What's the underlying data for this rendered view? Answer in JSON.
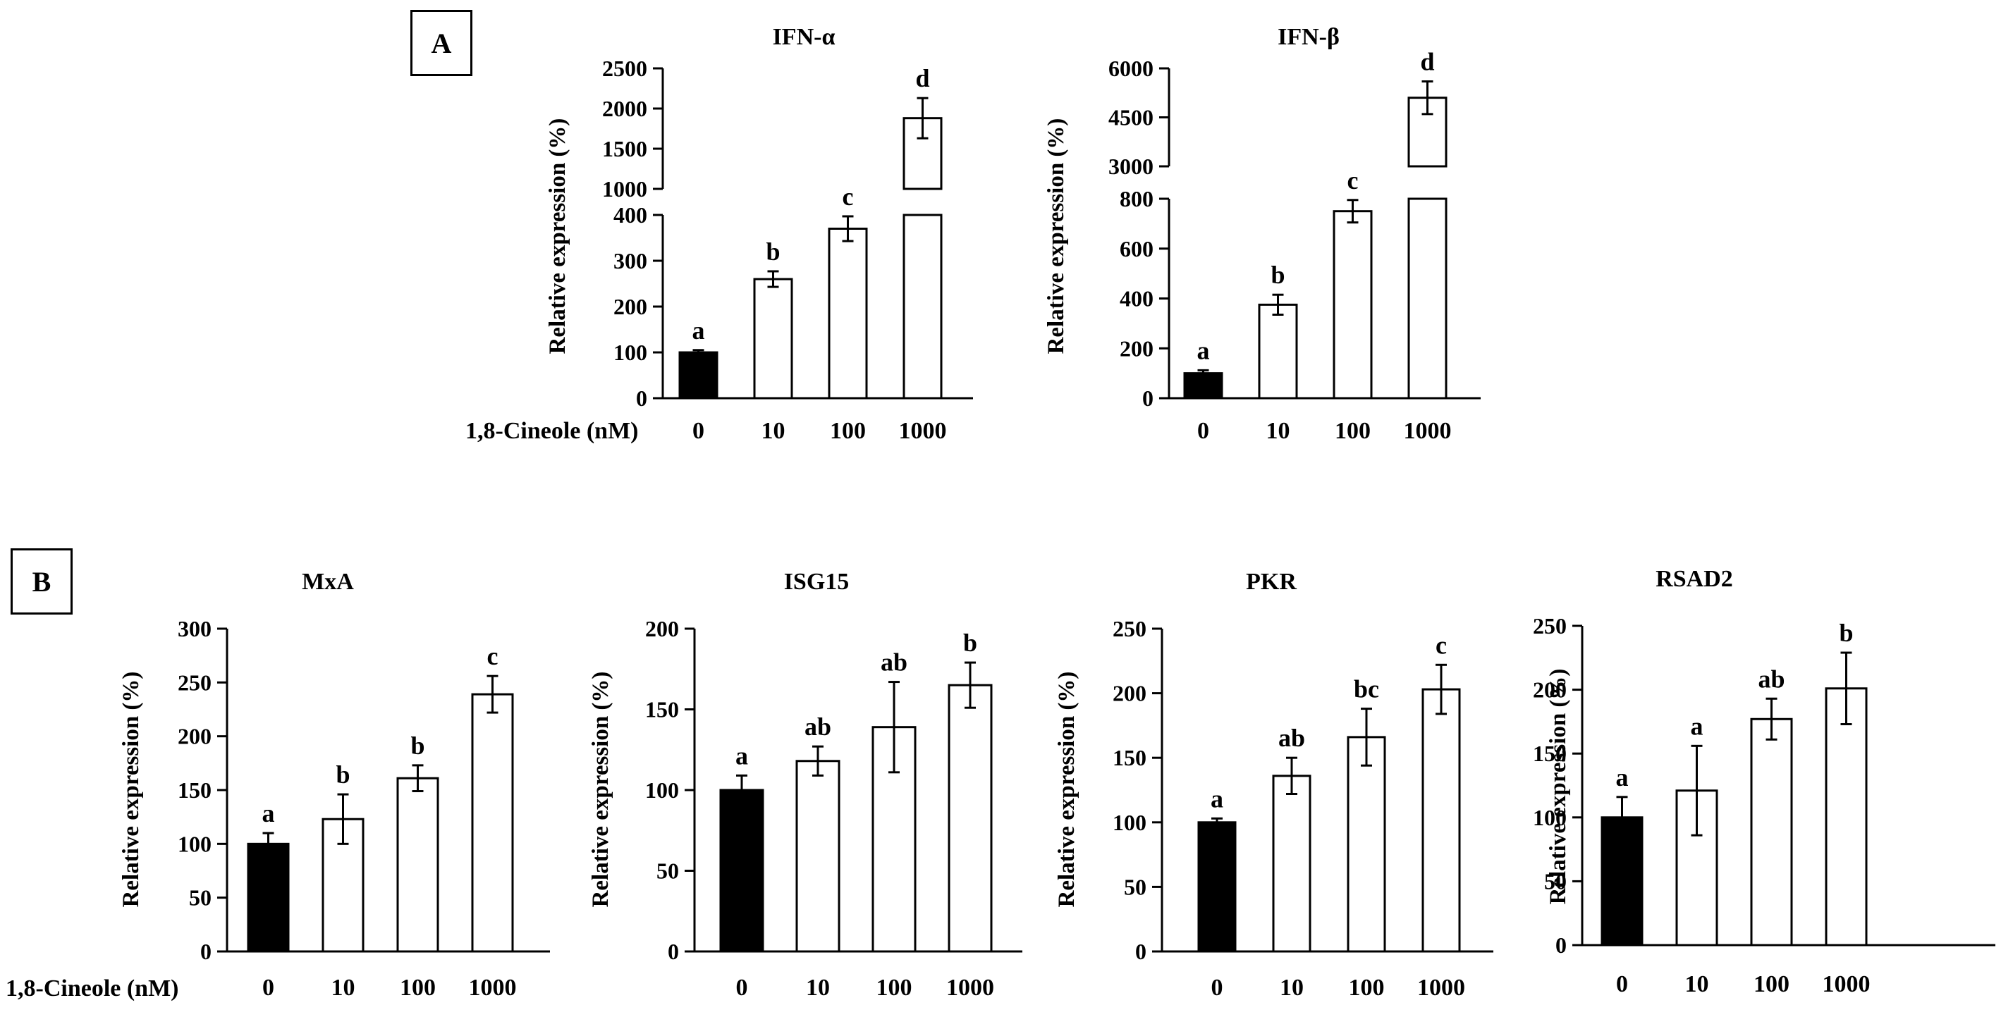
{
  "panel_labels": {
    "a": "A",
    "b": "B"
  },
  "x_axis_label": "1,8-Cineole (nM)",
  "colors": {
    "control_bar": "#000000",
    "treated_bar": "#ffffff",
    "axis": "#000000"
  },
  "chart_data": [
    {
      "type": "bar",
      "title": "IFN-α",
      "ylabel": "Relative expression (%)",
      "categories": [
        "0",
        "10",
        "100",
        "1000"
      ],
      "values": [
        100,
        260,
        370,
        1880
      ],
      "errors": [
        5,
        17,
        27,
        250
      ],
      "significance": [
        "a",
        "b",
        "c",
        "d"
      ],
      "broken_axis": true,
      "lower_ylim": [
        0,
        400
      ],
      "lower_yticks": [
        "0",
        "100",
        "200",
        "300",
        "400"
      ],
      "upper_ylim": [
        1000,
        2500
      ],
      "upper_yticks": [
        "1000",
        "1500",
        "2000",
        "2500"
      ]
    },
    {
      "type": "bar",
      "title": "IFN-β",
      "ylabel": "Relative expression (%)",
      "categories": [
        "0",
        "10",
        "100",
        "1000"
      ],
      "values": [
        100,
        375,
        750,
        5100
      ],
      "errors": [
        12,
        40,
        45,
        500
      ],
      "significance": [
        "a",
        "b",
        "c",
        "d"
      ],
      "broken_axis": true,
      "lower_ylim": [
        0,
        800
      ],
      "lower_yticks": [
        "0",
        "200",
        "400",
        "600",
        "800"
      ],
      "upper_ylim": [
        3000,
        6000
      ],
      "upper_yticks": [
        "3000",
        "4500",
        "6000"
      ]
    },
    {
      "type": "bar",
      "title": "MxA",
      "ylabel": "Relative expression (%)",
      "categories": [
        "0",
        "10",
        "100",
        "1000"
      ],
      "values": [
        100,
        123,
        161,
        239
      ],
      "errors": [
        10,
        23,
        12,
        17
      ],
      "significance": [
        "a",
        "b",
        "b",
        "c"
      ],
      "ylim": [
        0,
        300
      ],
      "yticks": [
        "0",
        "50",
        "100",
        "150",
        "200",
        "250",
        "300"
      ]
    },
    {
      "type": "bar",
      "title": "ISG15",
      "ylabel": "Relative expression (%)",
      "categories": [
        "0",
        "10",
        "100",
        "1000"
      ],
      "values": [
        100,
        118,
        139,
        165
      ],
      "errors": [
        9,
        9,
        28,
        14
      ],
      "significance": [
        "a",
        "ab",
        "ab",
        "b"
      ],
      "ylim": [
        0,
        200
      ],
      "yticks": [
        "0",
        "50",
        "100",
        "150",
        "200"
      ]
    },
    {
      "type": "bar",
      "title": "PKR",
      "ylabel": "Relative expression (%)",
      "categories": [
        "0",
        "10",
        "100",
        "1000"
      ],
      "values": [
        100,
        136,
        166,
        203
      ],
      "errors": [
        3,
        14,
        22,
        19
      ],
      "significance": [
        "a",
        "ab",
        "bc",
        "c"
      ],
      "ylim": [
        0,
        250
      ],
      "yticks": [
        "0",
        "50",
        "100",
        "150",
        "200",
        "250"
      ]
    },
    {
      "type": "bar",
      "title": "RSAD2",
      "ylabel": "Relative expression (%)",
      "categories": [
        "0",
        "10",
        "100",
        "1000"
      ],
      "values": [
        100,
        121,
        177,
        201
      ],
      "errors": [
        16,
        35,
        16,
        28
      ],
      "significance": [
        "a",
        "a",
        "ab",
        "b"
      ],
      "ylim": [
        0,
        250
      ],
      "yticks": [
        "0",
        "50",
        "100",
        "150",
        "200",
        "250"
      ]
    }
  ]
}
